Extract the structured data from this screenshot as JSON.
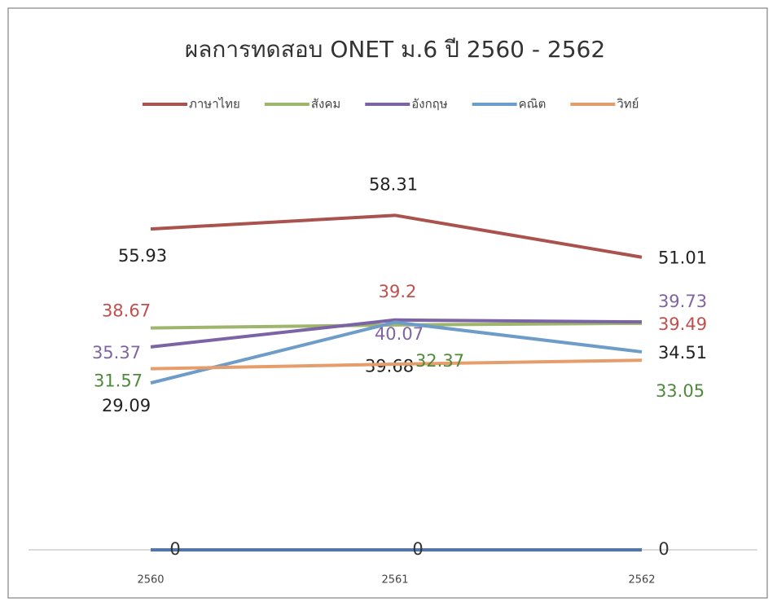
{
  "chart_data": {
    "type": "line",
    "title": "ผลการทดสอบ ONET ม.6   ปี 2560 - 2562",
    "categories": [
      "2560",
      "2561",
      "2562"
    ],
    "series": [
      {
        "name": "ภาษาไทย",
        "color": "#a9524e",
        "label_color": "#222222",
        "values": [
          55.93,
          58.31,
          51.01
        ]
      },
      {
        "name": "สังคม",
        "color": "#9db56c",
        "label_color": "#c0504d",
        "values": [
          38.67,
          39.2,
          39.49
        ]
      },
      {
        "name": "อังกฤษ",
        "color": "#7b63a5",
        "label_color": "#8064a2",
        "values": [
          35.37,
          40.07,
          39.73
        ]
      },
      {
        "name": "คณิต",
        "color": "#6e9cc8",
        "label_color": "#222222",
        "values": [
          29.09,
          39.68,
          34.51
        ]
      },
      {
        "name": "วิทย์",
        "color": "#e69d6c",
        "label_color": "#4f8a3c",
        "values": [
          31.57,
          32.37,
          33.05
        ]
      },
      {
        "color": "#4f76b3",
        "label_color": "#333333",
        "values": [
          0,
          0,
          0
        ]
      }
    ],
    "ylim": [
      0,
      70
    ],
    "legend": "top"
  }
}
